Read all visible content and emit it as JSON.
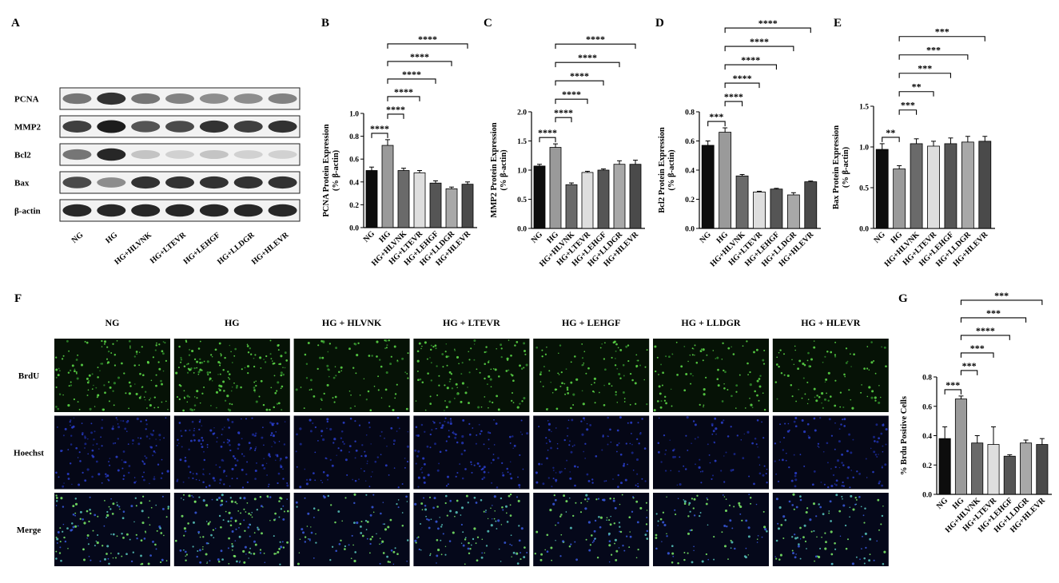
{
  "panels": {
    "A": "A",
    "B": "B",
    "C": "C",
    "D": "D",
    "E": "E",
    "F": "F",
    "G": "G"
  },
  "western_blot": {
    "proteins": [
      "PCNA",
      "MMP2",
      "Bcl2",
      "Bax",
      "β-actin"
    ],
    "lanes": [
      "NG",
      "HG",
      "HG+HLVNK",
      "HG+LTEVR",
      "HG+LEHGF",
      "HG+LLDGR",
      "HG+HLEVR"
    ],
    "band_intensity": [
      [
        0.55,
        0.85,
        0.55,
        0.5,
        0.45,
        0.45,
        0.5
      ],
      [
        0.8,
        0.95,
        0.7,
        0.75,
        0.85,
        0.8,
        0.85
      ],
      [
        0.55,
        0.9,
        0.2,
        0.15,
        0.2,
        0.15,
        0.15
      ],
      [
        0.75,
        0.45,
        0.85,
        0.85,
        0.85,
        0.85,
        0.85
      ],
      [
        0.9,
        0.9,
        0.9,
        0.9,
        0.9,
        0.9,
        0.9
      ]
    ]
  },
  "chart_data": [
    {
      "panel": "B",
      "type": "bar",
      "ylabel": "PCNA Protein Expression\n(% β-actin)",
      "ylim": [
        0,
        1.0
      ],
      "yticks": [
        "0.0",
        "0.2",
        "0.4",
        "0.6",
        "0.8",
        "1.0"
      ],
      "categories": [
        "NG",
        "HG",
        "HG+HLVNK",
        "HG+LTEVR",
        "HG+LEHGF",
        "HG+LLDGR",
        "HG+HLEVR"
      ],
      "values": [
        0.5,
        0.72,
        0.5,
        0.48,
        0.39,
        0.34,
        0.38
      ],
      "errors": [
        0.03,
        0.05,
        0.02,
        0.02,
        0.02,
        0.015,
        0.02
      ],
      "significance": [
        {
          "from": 0,
          "to": 1,
          "label": "****"
        },
        {
          "from": 1,
          "to": 2,
          "label": "****"
        },
        {
          "from": 1,
          "to": 3,
          "label": "****"
        },
        {
          "from": 1,
          "to": 4,
          "label": "****"
        },
        {
          "from": 1,
          "to": 5,
          "label": "****"
        },
        {
          "from": 1,
          "to": 6,
          "label": "****"
        }
      ]
    },
    {
      "panel": "C",
      "type": "bar",
      "ylabel": "MMP2 Protein Expression\n(% β-actin)",
      "ylim": [
        0,
        2.0
      ],
      "yticks": [
        "0.0",
        "0.5",
        "1.0",
        "1.5",
        "2.0"
      ],
      "categories": [
        "NG",
        "HG",
        "HG+HLVNK",
        "HG+LTEVR",
        "HG+LEHGF",
        "HG+LLDGR",
        "HG+HLEVR"
      ],
      "values": [
        1.07,
        1.39,
        0.75,
        0.96,
        1.0,
        1.1,
        1.1
      ],
      "errors": [
        0.03,
        0.06,
        0.03,
        0.02,
        0.02,
        0.06,
        0.07
      ],
      "significance": [
        {
          "from": 0,
          "to": 1,
          "label": "****"
        },
        {
          "from": 1,
          "to": 2,
          "label": "****"
        },
        {
          "from": 1,
          "to": 3,
          "label": "****"
        },
        {
          "from": 1,
          "to": 4,
          "label": "****"
        },
        {
          "from": 1,
          "to": 5,
          "label": "****"
        },
        {
          "from": 1,
          "to": 6,
          "label": "****"
        }
      ]
    },
    {
      "panel": "D",
      "type": "bar",
      "ylabel": "Bcl2 Protein Expression\n(% β-actin)",
      "ylim": [
        0,
        0.8
      ],
      "yticks": [
        "0.0",
        "0.2",
        "0.4",
        "0.6",
        "0.8"
      ],
      "categories": [
        "NG",
        "HG",
        "HG+HLVNK",
        "HG+LTEVR",
        "HG+LEHGF",
        "HG+LLDGR",
        "HG+HLEVR"
      ],
      "values": [
        0.57,
        0.66,
        0.36,
        0.25,
        0.27,
        0.23,
        0.32
      ],
      "errors": [
        0.03,
        0.03,
        0.01,
        0.005,
        0.005,
        0.015,
        0.005
      ],
      "significance": [
        {
          "from": 0,
          "to": 1,
          "label": "***"
        },
        {
          "from": 1,
          "to": 2,
          "label": "****"
        },
        {
          "from": 1,
          "to": 3,
          "label": "****"
        },
        {
          "from": 1,
          "to": 4,
          "label": "****"
        },
        {
          "from": 1,
          "to": 5,
          "label": "****"
        },
        {
          "from": 1,
          "to": 6,
          "label": "****"
        }
      ]
    },
    {
      "panel": "E",
      "type": "bar",
      "ylabel": "Bax Protein Expression\n(% β-actin)",
      "ylim": [
        0,
        1.5
      ],
      "yticks": [
        "0.0",
        "0.5",
        "1.0",
        "1.5"
      ],
      "categories": [
        "NG",
        "HG",
        "HG+HLVNK",
        "HG+LTEVR",
        "HG+LEHGF",
        "HG+LLDGR",
        "HG+HLEVR"
      ],
      "values": [
        0.97,
        0.73,
        1.04,
        1.01,
        1.04,
        1.06,
        1.07
      ],
      "errors": [
        0.07,
        0.04,
        0.06,
        0.06,
        0.07,
        0.07,
        0.06
      ],
      "significance": [
        {
          "from": 0,
          "to": 1,
          "label": "**"
        },
        {
          "from": 1,
          "to": 2,
          "label": "***"
        },
        {
          "from": 1,
          "to": 3,
          "label": "**"
        },
        {
          "from": 1,
          "to": 4,
          "label": "***"
        },
        {
          "from": 1,
          "to": 5,
          "label": "***"
        },
        {
          "from": 1,
          "to": 6,
          "label": "***"
        }
      ]
    },
    {
      "panel": "G",
      "type": "bar",
      "ylabel": "% Brdu Positive Cells",
      "ylim": [
        0,
        0.8
      ],
      "yticks": [
        "0.0",
        "0.2",
        "0.4",
        "0.6",
        "0.8"
      ],
      "categories": [
        "NG",
        "HG",
        "HG+HLVNK",
        "HG+LTEVR",
        "HG+LEHGF",
        "HG+LLDGR",
        "HG+HLEVR"
      ],
      "values": [
        0.38,
        0.65,
        0.35,
        0.34,
        0.26,
        0.35,
        0.34
      ],
      "errors": [
        0.08,
        0.02,
        0.05,
        0.12,
        0.01,
        0.02,
        0.04
      ],
      "significance": [
        {
          "from": 0,
          "to": 1,
          "label": "***"
        },
        {
          "from": 1,
          "to": 2,
          "label": "***"
        },
        {
          "from": 1,
          "to": 3,
          "label": "***"
        },
        {
          "from": 1,
          "to": 4,
          "label": "****"
        },
        {
          "from": 1,
          "to": 5,
          "label": "***"
        },
        {
          "from": 1,
          "to": 6,
          "label": "***"
        }
      ]
    }
  ],
  "bar_colors": [
    "#0d0d0d",
    "#9a9a9a",
    "#6a6a6a",
    "#dedede",
    "#555555",
    "#a8a8a8",
    "#4a4a4a"
  ],
  "micrographs": {
    "columns": [
      "NG",
      "HG",
      "HG + HLVNK",
      "HG + LTEVR",
      "HG + LEHGF",
      "HG + LLDGR",
      "HG + HLEVR"
    ],
    "rows": [
      "BrdU",
      "Hoechst",
      "Merge"
    ],
    "cell_density": [
      [
        0.7,
        0.9,
        0.35,
        0.6,
        0.45,
        0.4,
        0.4
      ],
      [
        0.7,
        0.9,
        0.4,
        0.6,
        0.5,
        0.3,
        0.5
      ],
      [
        0.7,
        0.9,
        0.4,
        0.6,
        0.5,
        0.4,
        0.5
      ]
    ]
  }
}
